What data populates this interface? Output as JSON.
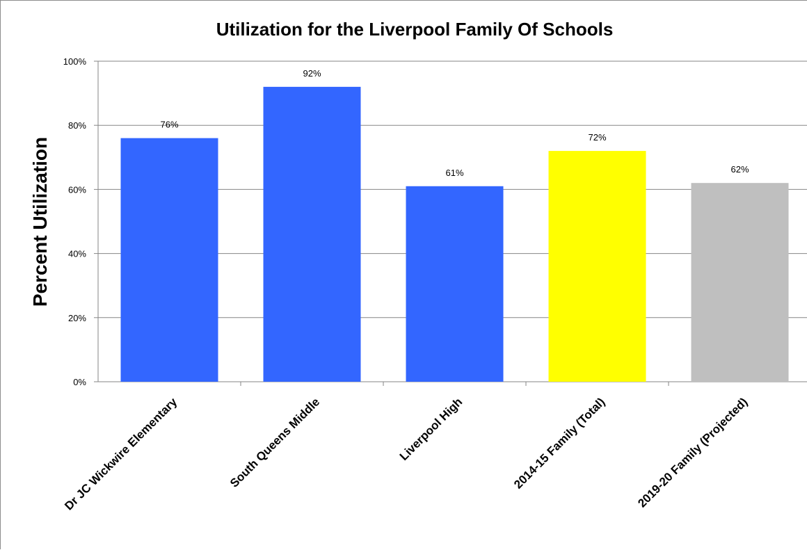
{
  "chart_data": {
    "type": "bar",
    "title": "Utilization for the Liverpool Family Of Schools",
    "xlabel": "",
    "ylabel": "Percent Utilization",
    "categories": [
      "Dr JC Wickwire Elementary",
      "South Queens Middle",
      "Liverpool High",
      "2014-15 Family (Total)",
      "2019-20 Family (Projected)"
    ],
    "values": [
      76,
      92,
      61,
      72,
      62
    ],
    "value_labels": [
      "76%",
      "92%",
      "61%",
      "72%",
      "62%"
    ],
    "bar_colors": [
      "#3366ff",
      "#3366ff",
      "#3366ff",
      "#ffff00",
      "#bfbfbf"
    ],
    "ylim": [
      0,
      100
    ],
    "yticks": [
      0,
      20,
      40,
      60,
      80,
      100
    ],
    "ytick_labels": [
      "0%",
      "20%",
      "40%",
      "60%",
      "80%",
      "100%"
    ],
    "grid": true,
    "legend": "none"
  }
}
